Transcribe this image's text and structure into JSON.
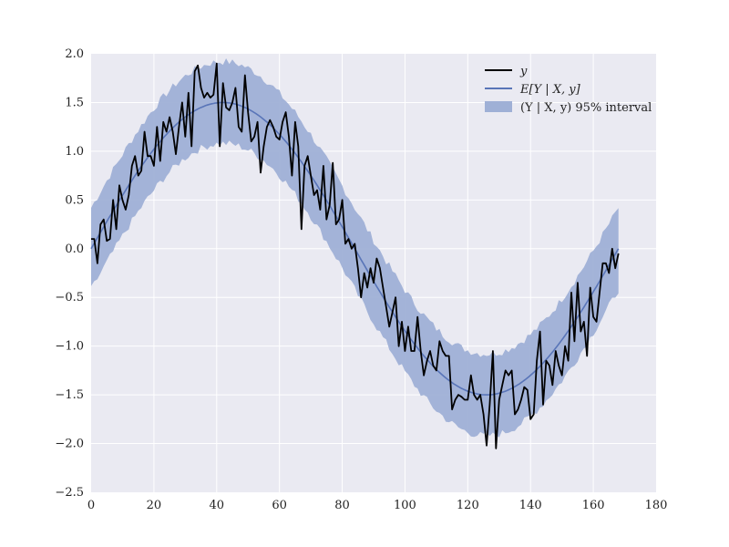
{
  "chart_data": {
    "type": "line",
    "title": "",
    "xlabel": "",
    "ylabel": "",
    "xlim": [
      0,
      180
    ],
    "ylim": [
      -2.5,
      2.0
    ],
    "xticks": [
      0,
      20,
      40,
      60,
      80,
      100,
      120,
      140,
      160,
      180
    ],
    "yticks": [
      -2.5,
      -2.0,
      -1.5,
      -1.0,
      -0.5,
      0.0,
      0.5,
      1.0,
      1.5,
      2.0
    ],
    "xtick_labels": [
      "0",
      "20",
      "40",
      "60",
      "80",
      "100",
      "120",
      "140",
      "160",
      "180"
    ],
    "ytick_labels": [
      "−2.5",
      "−2.0",
      "−1.5",
      "−1.0",
      "−0.5",
      "0.0",
      "0.5",
      "1.0",
      "1.5",
      "2.0"
    ],
    "grid": true,
    "legend_position": "top-right",
    "colors": {
      "background": "#eaeaf2",
      "grid": "#ffffff",
      "observed": "#000000",
      "mean": "#5975b8",
      "band": "#9fb0d6"
    },
    "series": [
      {
        "name": "y",
        "kind": "line",
        "x": [
          0,
          1,
          2,
          3,
          4,
          5,
          6,
          7,
          8,
          9,
          10,
          11,
          12,
          13,
          14,
          15,
          16,
          17,
          18,
          19,
          20,
          21,
          22,
          23,
          24,
          25,
          26,
          27,
          28,
          29,
          30,
          31,
          32,
          33,
          34,
          35,
          36,
          37,
          38,
          39,
          40,
          41,
          42,
          43,
          44,
          45,
          46,
          47,
          48,
          49,
          50,
          51,
          52,
          53,
          54,
          55,
          56,
          57,
          58,
          59,
          60,
          61,
          62,
          63,
          64,
          65,
          66,
          67,
          68,
          69,
          70,
          71,
          72,
          73,
          74,
          75,
          76,
          77,
          78,
          79,
          80,
          81,
          82,
          83,
          84,
          85,
          86,
          87,
          88,
          89,
          90,
          91,
          92,
          93,
          94,
          95,
          96,
          97,
          98,
          99,
          100,
          101,
          102,
          103,
          104,
          105,
          106,
          107,
          108,
          109,
          110,
          111,
          112,
          113,
          114,
          115,
          116,
          117,
          118,
          119,
          120,
          121,
          122,
          123,
          124,
          125,
          126,
          127,
          128,
          129,
          130,
          131,
          132,
          133,
          134,
          135,
          136,
          137,
          138,
          139,
          140,
          141,
          142,
          143,
          144,
          145,
          146,
          147,
          148,
          149,
          150,
          151,
          152,
          153,
          154,
          155,
          156,
          157,
          158,
          159,
          160,
          161,
          162,
          163,
          164,
          165,
          166,
          167,
          168
        ],
        "values": [
          0.1,
          0.1,
          -0.15,
          0.25,
          0.3,
          0.08,
          0.1,
          0.5,
          0.2,
          0.65,
          0.5,
          0.4,
          0.55,
          0.85,
          0.95,
          0.75,
          0.8,
          1.2,
          0.95,
          0.95,
          0.85,
          1.25,
          0.9,
          1.3,
          1.2,
          1.35,
          1.2,
          0.97,
          1.25,
          1.5,
          1.15,
          1.6,
          1.05,
          1.82,
          1.88,
          1.65,
          1.55,
          1.6,
          1.55,
          1.58,
          1.9,
          1.05,
          1.7,
          1.45,
          1.42,
          1.5,
          1.65,
          1.25,
          1.2,
          1.78,
          1.4,
          1.1,
          1.15,
          1.3,
          0.78,
          1.05,
          1.25,
          1.32,
          1.25,
          1.15,
          1.12,
          1.3,
          1.4,
          1.15,
          0.75,
          1.3,
          1.05,
          0.2,
          0.85,
          0.95,
          0.75,
          0.55,
          0.6,
          0.4,
          0.85,
          0.3,
          0.45,
          0.88,
          0.25,
          0.3,
          0.5,
          0.05,
          0.1,
          0.0,
          0.05,
          -0.2,
          -0.5,
          -0.25,
          -0.4,
          -0.2,
          -0.35,
          -0.1,
          -0.2,
          -0.4,
          -0.6,
          -0.8,
          -0.65,
          -0.5,
          -1.0,
          -0.75,
          -1.05,
          -0.8,
          -1.05,
          -1.05,
          -0.7,
          -1.05,
          -1.3,
          -1.15,
          -1.05,
          -1.2,
          -1.25,
          -0.95,
          -1.05,
          -1.1,
          -1.1,
          -1.65,
          -1.55,
          -1.5,
          -1.52,
          -1.55,
          -1.55,
          -1.3,
          -1.5,
          -1.55,
          -1.5,
          -1.7,
          -2.02,
          -1.6,
          -1.05,
          -2.05,
          -1.55,
          -1.4,
          -1.25,
          -1.3,
          -1.25,
          -1.7,
          -1.65,
          -1.55,
          -1.42,
          -1.45,
          -1.75,
          -1.7,
          -1.15,
          -0.85,
          -1.6,
          -1.15,
          -1.2,
          -1.4,
          -1.05,
          -1.2,
          -1.3,
          -1.0,
          -1.15,
          -0.45,
          -0.95,
          -0.35,
          -0.85,
          -0.75,
          -1.1,
          -0.4,
          -0.7,
          -0.75,
          -0.45,
          -0.15,
          -0.15,
          -0.25,
          0.0,
          -0.2,
          -0.05
        ]
      },
      {
        "name": "E[Y | X, y]",
        "kind": "mean",
        "function": "1.5*sin(2*pi*x/168)"
      },
      {
        "name": "(Y | X, y) 95% interval",
        "kind": "band",
        "halfwidth": 0.42
      }
    ],
    "legend": [
      {
        "key": "y",
        "text": "y"
      },
      {
        "key": "mean",
        "text": "E[Y | X, y]"
      },
      {
        "key": "band",
        "text": "(Y | X, y) 95% interval"
      }
    ]
  }
}
